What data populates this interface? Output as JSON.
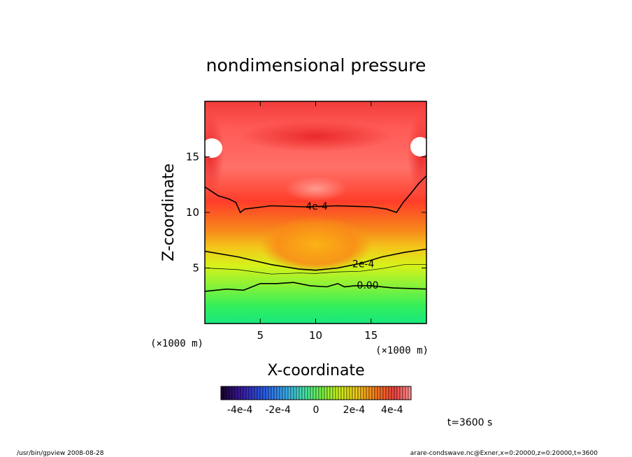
{
  "chart_data": {
    "type": "heatmap",
    "title": "nondimensional pressure",
    "xlabel": "X-coordinate",
    "ylabel": "Z-coordinate",
    "x_unit": "(×1000 m)",
    "y_unit": "(×1000 m)",
    "xlim": [
      0,
      20
    ],
    "ylim": [
      0,
      20
    ],
    "x_ticks": [
      5,
      10,
      15
    ],
    "y_ticks": [
      5,
      10,
      15
    ],
    "x_tick_labels": [
      "5",
      "10",
      "15"
    ],
    "y_tick_labels": [
      "5",
      "10",
      "15"
    ],
    "contours": [
      {
        "label": "4e-4",
        "level": 0.0004,
        "label_x": 10.1,
        "label_z": 10.5,
        "points": [
          [
            0,
            12.3
          ],
          [
            1.2,
            11.5
          ],
          [
            2.2,
            11.2
          ],
          [
            2.8,
            10.9
          ],
          [
            3.2,
            10.0
          ],
          [
            3.6,
            10.3
          ],
          [
            6,
            10.6
          ],
          [
            9,
            10.5
          ],
          [
            12,
            10.6
          ],
          [
            15,
            10.5
          ],
          [
            16.4,
            10.3
          ],
          [
            17.3,
            10.0
          ],
          [
            17.9,
            10.9
          ],
          [
            18.5,
            11.6
          ],
          [
            19.3,
            12.6
          ],
          [
            20,
            13.3
          ]
        ]
      },
      {
        "label": "2e-4",
        "level": 0.0002,
        "label_x": 14.3,
        "label_z": 5.3,
        "points": [
          [
            0,
            6.5
          ],
          [
            3,
            6.0
          ],
          [
            6,
            5.3
          ],
          [
            8.5,
            4.9
          ],
          [
            10,
            4.8
          ],
          [
            12,
            5.0
          ],
          [
            14,
            5.4
          ],
          [
            16,
            6.0
          ],
          [
            18,
            6.4
          ],
          [
            20,
            6.7
          ]
        ]
      },
      {
        "label": "0.00",
        "level": 0.0,
        "label_x": 14.7,
        "label_z": 3.4,
        "points": [
          [
            0,
            2.9
          ],
          [
            2,
            3.1
          ],
          [
            3.5,
            3.0
          ],
          [
            5,
            3.6
          ],
          [
            6.5,
            3.6
          ],
          [
            8,
            3.7
          ],
          [
            9.5,
            3.4
          ],
          [
            11,
            3.3
          ],
          [
            12,
            3.6
          ],
          [
            12.6,
            3.3
          ],
          [
            13.5,
            3.4
          ],
          [
            15,
            3.4
          ],
          [
            17,
            3.2
          ],
          [
            20,
            3.1
          ]
        ]
      }
    ],
    "colorbar": {
      "range": [
        -0.0005,
        0.0005
      ],
      "tick_labels": [
        "-4e-4",
        "-2e-4",
        "0",
        "2e-4",
        "4e-4"
      ],
      "tick_values": [
        -0.0004,
        -0.0002,
        0,
        0.0002,
        0.0004
      ]
    }
  },
  "time_label": "t=3600 s",
  "footer": {
    "left": "/usr/bin/gpview   2008-08-28",
    "right": "arare-condswave.nc@Exner,x=0:20000,z=0:20000,t=3600"
  }
}
